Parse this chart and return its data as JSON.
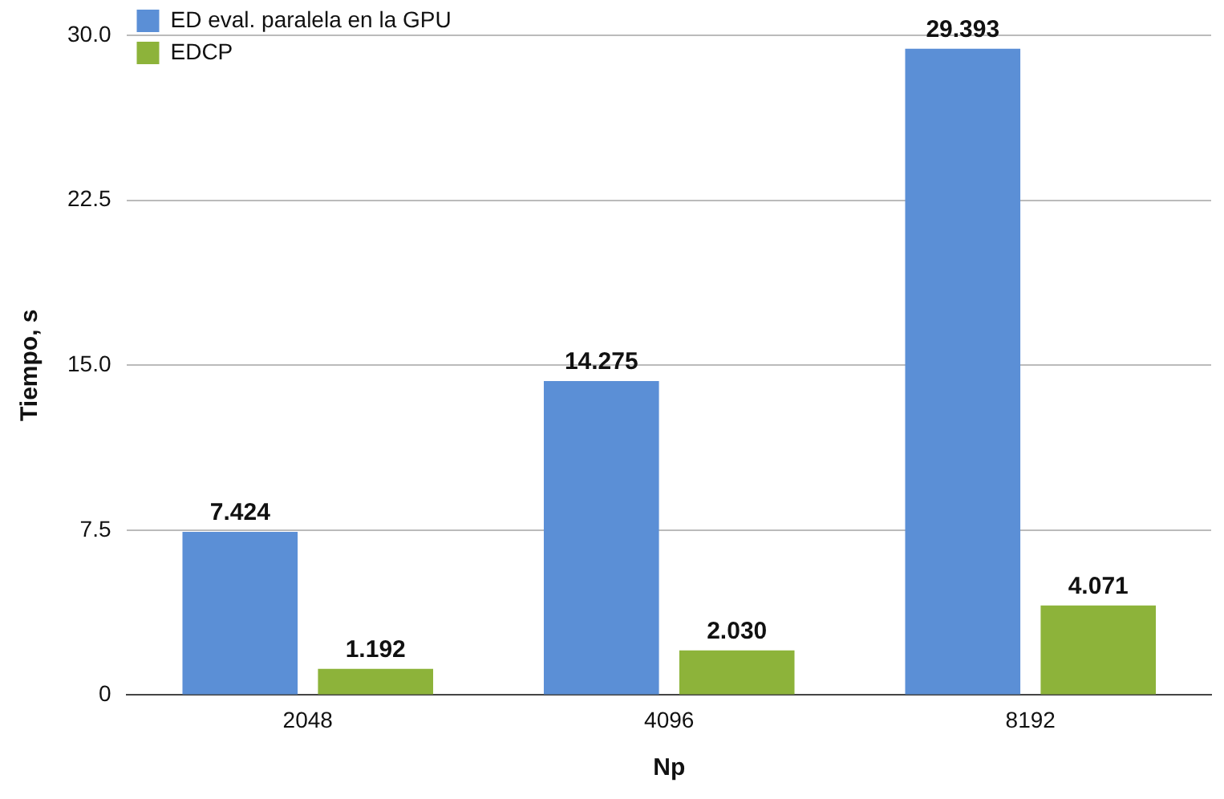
{
  "chart_data": {
    "type": "bar",
    "xlabel": "Np",
    "ylabel": "Tiempo, s",
    "categories": [
      "2048",
      "4096",
      "8192"
    ],
    "series": [
      {
        "name": "ED eval. paralela en la GPU",
        "color": "#5b8fd6",
        "values": [
          7.424,
          14.275,
          29.393
        ],
        "value_labels": [
          "7.424",
          "14.275",
          "29.393"
        ]
      },
      {
        "name": "EDCP",
        "color": "#8db33a",
        "values": [
          1.192,
          2.03,
          4.071
        ],
        "value_labels": [
          "1.192",
          "2.030",
          "4.071"
        ]
      }
    ],
    "ylim": [
      0,
      30
    ],
    "yticks": [
      0,
      {
        "value": 7.5,
        "label": "7.5"
      },
      {
        "value": 15,
        "label": "15.0"
      },
      {
        "value": 22.5,
        "label": "22.5"
      },
      {
        "value": 30,
        "label": "30.0"
      }
    ],
    "grid": "y",
    "legend": "top left"
  }
}
